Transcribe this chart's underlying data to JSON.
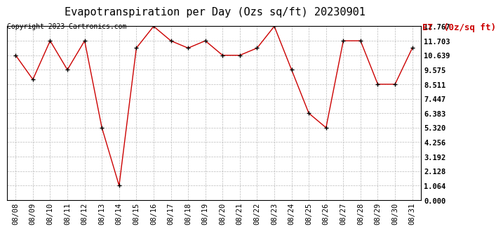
{
  "title": "Evapotranspiration per Day (Ozs sq/ft) 20230901",
  "copyright_text": "Copyright 2023 Cartronics.com",
  "legend_label": "ET  (0z/sq ft)",
  "dates": [
    "08/08",
    "08/09",
    "08/10",
    "08/11",
    "08/12",
    "08/13",
    "08/14",
    "08/15",
    "08/16",
    "08/17",
    "08/18",
    "08/19",
    "08/20",
    "08/21",
    "08/22",
    "08/23",
    "08/24",
    "08/25",
    "08/26",
    "08/27",
    "08/28",
    "08/29",
    "08/30",
    "08/31"
  ],
  "values": [
    10.639,
    8.864,
    11.703,
    9.575,
    11.703,
    5.32,
    1.064,
    11.17,
    12.767,
    11.703,
    11.17,
    11.703,
    10.639,
    10.639,
    11.17,
    12.767,
    9.575,
    6.383,
    5.32,
    11.703,
    11.703,
    8.511,
    8.511,
    11.17
  ],
  "yticks": [
    0.0,
    1.064,
    2.128,
    3.192,
    4.256,
    5.32,
    6.383,
    7.447,
    8.511,
    9.575,
    10.639,
    11.703,
    12.767
  ],
  "ylim": [
    0.0,
    12.767
  ],
  "line_color": "#cc0000",
  "marker": "+",
  "marker_color": "#000000",
  "background_color": "#ffffff",
  "grid_color": "#aaaaaa",
  "title_fontsize": 11,
  "copyright_fontsize": 7,
  "legend_fontsize": 9,
  "tick_fontsize": 7.5,
  "legend_color": "#cc0000",
  "border_color": "#000000"
}
